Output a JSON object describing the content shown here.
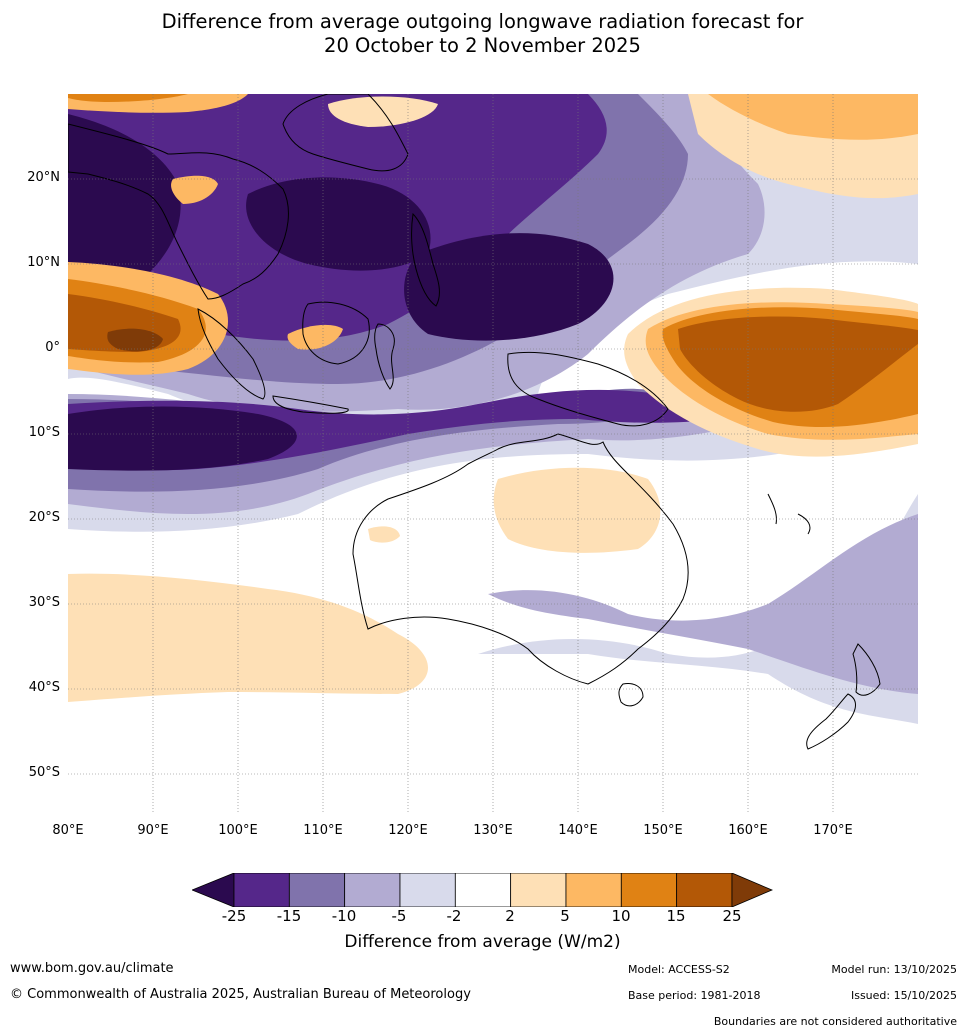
{
  "title": {
    "line1": "Difference from average outgoing longwave radiation forecast for",
    "line2": "20 October to 2 November 2025"
  },
  "axes": {
    "lat_labels": [
      "20°N",
      "10°N",
      "0°",
      "10°S",
      "20°S",
      "30°S",
      "40°S",
      "50°S"
    ],
    "lon_labels": [
      "80°E",
      "90°E",
      "100°E",
      "110°E",
      "120°E",
      "130°E",
      "140°E",
      "150°E",
      "160°E",
      "170°E"
    ]
  },
  "colorbar": {
    "ticks": [
      "-25",
      "-15",
      "-10",
      "-5",
      "-2",
      "2",
      "5",
      "10",
      "15",
      "25"
    ],
    "colors": {
      "lt_neg25": "#2b0a4f",
      "neg25_neg15": "#55278a",
      "neg15_neg10": "#8073ac",
      "neg10_neg5": "#b2abd2",
      "neg5_neg2": "#d8daeb",
      "neg2_2": "#ffffff",
      "p2_5": "#fee0b6",
      "p5_10": "#fdb863",
      "p10_15": "#e08214",
      "p15_25": "#b35806",
      "gt_25": "#7f3b08"
    },
    "label": "Difference from average (W/m2)"
  },
  "footer": {
    "website": "www.bom.gov.au/climate",
    "copyright": "© Commonwealth of Australia 2025, Australian Bureau of Meteorology",
    "model": "Model: ACCESS-S2",
    "base_period": "Base period: 1981-2018",
    "model_run": "Model run: 13/10/2025",
    "issued": "Issued: 15/10/2025",
    "disclaimer": "Boundaries are not considered authoritative"
  }
}
